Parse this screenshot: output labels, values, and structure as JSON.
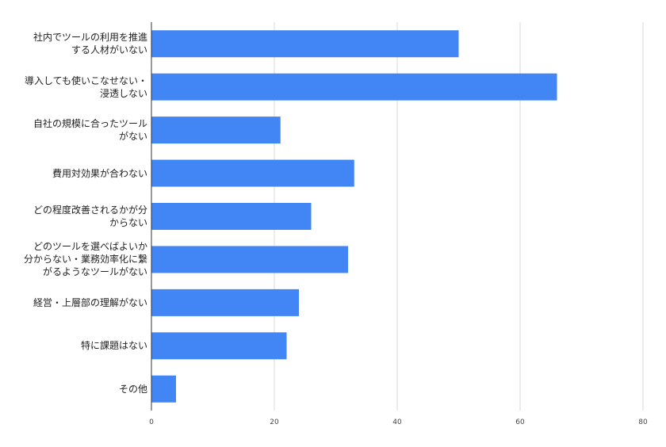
{
  "chart_data": {
    "type": "bar",
    "orientation": "horizontal",
    "categories": [
      "社内でツールの利用を推進\nする人材がいない",
      "導入しても使いこなせない・\n浸透しない",
      "自社の規模に合ったツール\nがない",
      "費用対効果が合わない",
      "どの程度改善されるかが分\nからない",
      "どのツールを選べばよいか\n分からない・業務効率化に繋\nがるようなツールがない",
      "経営・上層部の理解がない",
      "特に課題はない",
      "その他"
    ],
    "values": [
      50,
      66,
      21,
      33,
      26,
      32,
      24,
      22,
      4
    ],
    "xlim": [
      0,
      80
    ],
    "xticks": [
      "0",
      "20",
      "40",
      "60",
      "80"
    ],
    "grid": true,
    "bar_color": "#4285f4",
    "grid_color": "#d9d9d9",
    "axis_color": "#333333",
    "title": "",
    "xlabel": "",
    "ylabel": ""
  }
}
